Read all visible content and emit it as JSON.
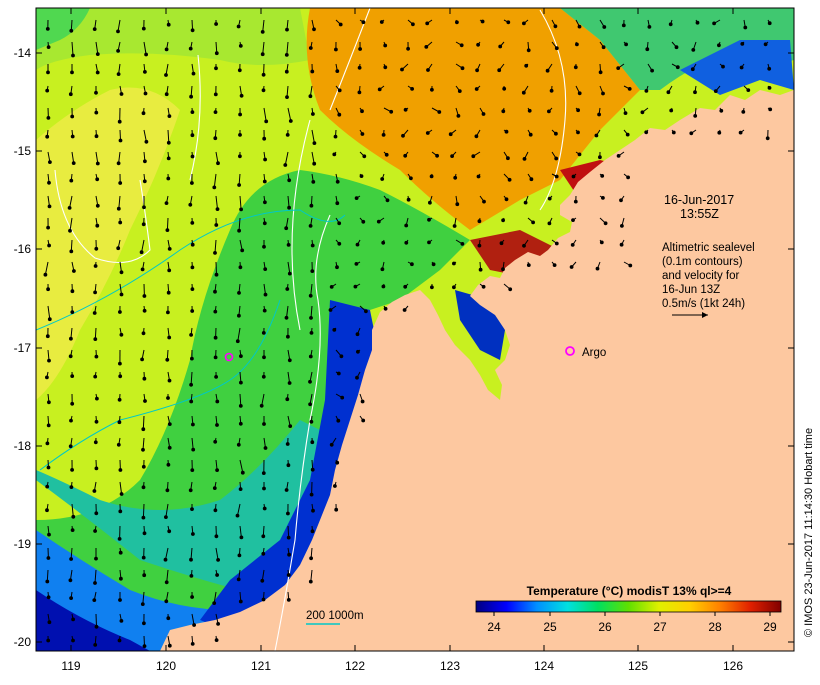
{
  "map": {
    "y_ticks": [
      "-14",
      "-15",
      "-16",
      "-17",
      "-18",
      "-19",
      "-20"
    ],
    "x_ticks": [
      "119",
      "120",
      "121",
      "122",
      "123",
      "124",
      "125",
      "126"
    ]
  },
  "annotation": {
    "date_line1": "16-Jun-2017",
    "date_line2": "13:55Z",
    "info_lines": [
      "Altimetric sealevel",
      "(0.1m contours)",
      "and velocity for",
      "16-Jun 13Z",
      "0.5m/s (1kt 24h)"
    ]
  },
  "argo": {
    "label": "Argo",
    "color": "#ff00ff"
  },
  "bathy_legend": {
    "label": "200  1000m",
    "color": "#00c8c8"
  },
  "colorbar": {
    "title": "Temperature (°C) modisT 13% ql>=4",
    "ticks": [
      "24",
      "25",
      "26",
      "27",
      "28",
      "29"
    ],
    "colors": [
      "#000080",
      "#0000ff",
      "#0090ff",
      "#00e0e0",
      "#00e060",
      "#60e000",
      "#e0f000",
      "#ffd000",
      "#ff8000",
      "#e02000",
      "#800000"
    ]
  },
  "credit": "© IMOS 23-Jun-2017 11:14:30 Hobart time",
  "colors": {
    "land": "#fdc8a0",
    "frame": "#000000"
  }
}
